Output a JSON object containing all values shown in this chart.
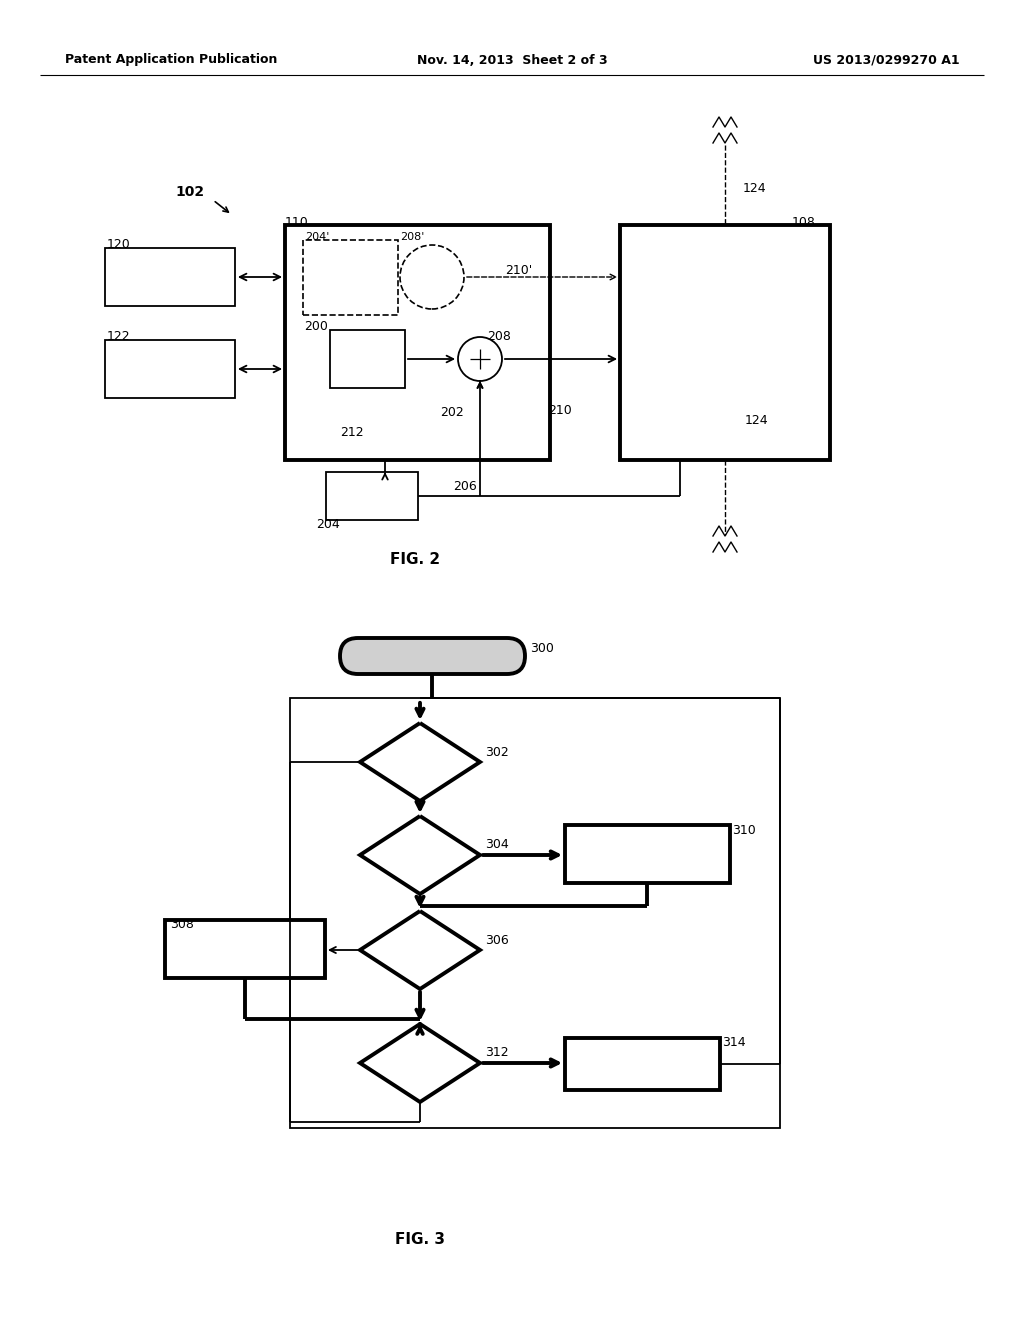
{
  "header_left": "Patent Application Publication",
  "header_center": "Nov. 14, 2013  Sheet 2 of 3",
  "header_right": "US 2013/0299270 A1",
  "fig2_label": "FIG. 2",
  "fig3_label": "FIG. 3",
  "bg_color": "#ffffff",
  "fig2": {
    "label_102": "102",
    "label_110": "110",
    "label_108": "108",
    "label_120": "120",
    "label_122": "122",
    "label_200": "200",
    "label_202": "202",
    "label_204": "204",
    "label_204p": "204'",
    "label_206": "206",
    "label_208": "208",
    "label_208p": "208'",
    "label_210": "210",
    "label_210p": "210'",
    "label_212": "212",
    "label_124a": "124",
    "label_124b": "124"
  },
  "fig3": {
    "label_300": "300",
    "label_302": "302",
    "label_304": "304",
    "label_306": "306",
    "label_308": "308",
    "label_310": "310",
    "label_312": "312",
    "label_314": "314"
  }
}
